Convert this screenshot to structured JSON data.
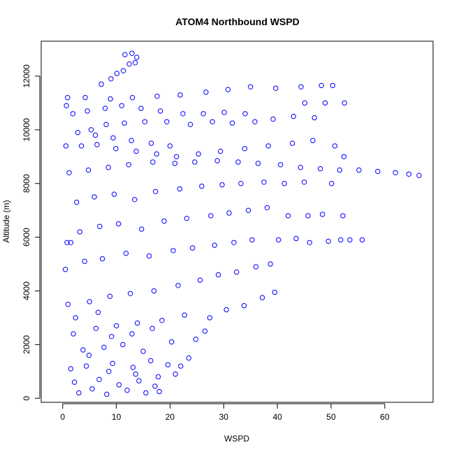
{
  "chart_data": {
    "type": "scatter",
    "title": "ATOM4 Northbound WSPD",
    "xlabel": "WSPD",
    "ylabel": "Altitude (m)",
    "xlim": [
      -4,
      69
    ],
    "ylim": [
      -150,
      13300
    ],
    "xticks": [
      0,
      10,
      20,
      30,
      40,
      50,
      60
    ],
    "yticks": [
      0,
      2000,
      4000,
      6000,
      8000,
      10000,
      12000
    ],
    "grid": false,
    "legend": "none",
    "marker": "open-circle",
    "colors": {
      "series": "#0000ff",
      "axes": "#000000",
      "background": "#ffffff"
    },
    "series": [
      {
        "values": [
          [
            3.0,
            200
          ],
          [
            5.5,
            350
          ],
          [
            8.2,
            150
          ],
          [
            12.0,
            300
          ],
          [
            15.5,
            200
          ],
          [
            18.0,
            250
          ],
          [
            2.2,
            600
          ],
          [
            6.8,
            700
          ],
          [
            10.5,
            500
          ],
          [
            14.2,
            650
          ],
          [
            17.8,
            800
          ],
          [
            21.0,
            900
          ],
          [
            1.5,
            1100
          ],
          [
            4.4,
            1200
          ],
          [
            9.3,
            1300
          ],
          [
            13.1,
            1150
          ],
          [
            16.4,
            1400
          ],
          [
            19.6,
            1250
          ],
          [
            23.5,
            1500
          ],
          [
            3.8,
            1800
          ],
          [
            7.7,
            1900
          ],
          [
            11.2,
            2000
          ],
          [
            15.0,
            1750
          ],
          [
            20.3,
            2100
          ],
          [
            24.8,
            2200
          ],
          [
            26.5,
            2500
          ],
          [
            2.0,
            2400
          ],
          [
            6.2,
            2600
          ],
          [
            10.0,
            2700
          ],
          [
            13.9,
            2800
          ],
          [
            18.5,
            2900
          ],
          [
            22.7,
            3100
          ],
          [
            27.4,
            3000
          ],
          [
            30.5,
            3300
          ],
          [
            33.8,
            3450
          ],
          [
            37.2,
            3750
          ],
          [
            39.5,
            3950
          ],
          [
            1.0,
            3500
          ],
          [
            5.0,
            3600
          ],
          [
            8.8,
            3800
          ],
          [
            12.6,
            3900
          ],
          [
            17.0,
            4000
          ],
          [
            21.5,
            4200
          ],
          [
            25.6,
            4400
          ],
          [
            29.0,
            4600
          ],
          [
            32.4,
            4700
          ],
          [
            36.0,
            4900
          ],
          [
            38.7,
            5000
          ],
          [
            0.5,
            4800
          ],
          [
            4.1,
            5100
          ],
          [
            7.4,
            5200
          ],
          [
            11.8,
            5400
          ],
          [
            16.1,
            5300
          ],
          [
            20.6,
            5500
          ],
          [
            24.2,
            5600
          ],
          [
            28.3,
            5700
          ],
          [
            31.9,
            5800
          ],
          [
            35.3,
            5900
          ],
          [
            40.2,
            5900
          ],
          [
            43.5,
            5950
          ],
          [
            46.0,
            5800
          ],
          [
            49.5,
            5850
          ],
          [
            51.8,
            5900
          ],
          [
            53.5,
            5900
          ],
          [
            55.8,
            5900
          ],
          [
            0.8,
            5800
          ],
          [
            1.5,
            5800
          ],
          [
            3.2,
            6200
          ],
          [
            6.9,
            6400
          ],
          [
            10.4,
            6500
          ],
          [
            14.7,
            6300
          ],
          [
            18.9,
            6600
          ],
          [
            23.1,
            6700
          ],
          [
            27.6,
            6800
          ],
          [
            31.0,
            6900
          ],
          [
            34.6,
            7000
          ],
          [
            38.1,
            7100
          ],
          [
            42.0,
            6800
          ],
          [
            45.7,
            6800
          ],
          [
            48.4,
            6850
          ],
          [
            52.2,
            6800
          ],
          [
            2.6,
            7300
          ],
          [
            5.9,
            7500
          ],
          [
            9.6,
            7600
          ],
          [
            13.4,
            7400
          ],
          [
            17.3,
            7700
          ],
          [
            21.8,
            7800
          ],
          [
            25.9,
            7900
          ],
          [
            29.7,
            7950
          ],
          [
            33.2,
            8000
          ],
          [
            37.5,
            8050
          ],
          [
            41.3,
            8000
          ],
          [
            45.0,
            8050
          ],
          [
            50.1,
            8000
          ],
          [
            1.2,
            8400
          ],
          [
            4.8,
            8500
          ],
          [
            8.5,
            8600
          ],
          [
            12.3,
            8700
          ],
          [
            16.8,
            8800
          ],
          [
            20.9,
            8750
          ],
          [
            24.6,
            8800
          ],
          [
            28.8,
            8850
          ],
          [
            32.7,
            8800
          ],
          [
            36.4,
            8750
          ],
          [
            40.6,
            8700
          ],
          [
            44.3,
            8600
          ],
          [
            48.0,
            8550
          ],
          [
            51.6,
            8500
          ],
          [
            55.2,
            8500
          ],
          [
            58.7,
            8450
          ],
          [
            62.0,
            8400
          ],
          [
            64.5,
            8350
          ],
          [
            66.4,
            8300
          ],
          [
            0.6,
            9400
          ],
          [
            3.5,
            9400
          ],
          [
            6.4,
            9450
          ],
          [
            9.9,
            9300
          ],
          [
            13.7,
            9200
          ],
          [
            17.5,
            9100
          ],
          [
            21.2,
            9000
          ],
          [
            25.3,
            9100
          ],
          [
            29.4,
            9200
          ],
          [
            33.9,
            9300
          ],
          [
            38.3,
            9400
          ],
          [
            42.8,
            9500
          ],
          [
            46.6,
            9600
          ],
          [
            50.7,
            9400
          ],
          [
            52.4,
            9000
          ],
          [
            2.8,
            9900
          ],
          [
            5.3,
            10000
          ],
          [
            8.1,
            10200
          ],
          [
            11.5,
            10250
          ],
          [
            15.3,
            10300
          ],
          [
            19.4,
            10300
          ],
          [
            23.8,
            10200
          ],
          [
            27.9,
            10300
          ],
          [
            31.6,
            10250
          ],
          [
            35.8,
            10300
          ],
          [
            39.2,
            10400
          ],
          [
            43.0,
            10500
          ],
          [
            46.9,
            10450
          ],
          [
            1.9,
            10600
          ],
          [
            4.6,
            10700
          ],
          [
            7.9,
            10800
          ],
          [
            11.0,
            10900
          ],
          [
            14.6,
            10800
          ],
          [
            18.2,
            10700
          ],
          [
            22.4,
            10600
          ],
          [
            26.2,
            10600
          ],
          [
            30.1,
            10650
          ],
          [
            34.0,
            10600
          ],
          [
            45.1,
            11000
          ],
          [
            48.9,
            11000
          ],
          [
            52.5,
            11000
          ],
          [
            0.7,
            10900
          ],
          [
            0.9,
            11200
          ],
          [
            4.2,
            11200
          ],
          [
            8.9,
            11150
          ],
          [
            13.0,
            11200
          ],
          [
            17.6,
            11250
          ],
          [
            21.9,
            11300
          ],
          [
            26.7,
            11400
          ],
          [
            30.8,
            11500
          ],
          [
            35.0,
            11600
          ],
          [
            39.7,
            11550
          ],
          [
            44.4,
            11600
          ],
          [
            48.2,
            11650
          ],
          [
            50.3,
            11650
          ],
          [
            7.2,
            11700
          ],
          [
            9.0,
            11900
          ],
          [
            10.1,
            12100
          ],
          [
            11.3,
            12200
          ],
          [
            12.4,
            12450
          ],
          [
            13.5,
            12500
          ],
          [
            11.6,
            12800
          ],
          [
            12.9,
            12850
          ],
          [
            13.8,
            12700
          ],
          [
            6.1,
            9800
          ],
          [
            9.4,
            9700
          ],
          [
            12.8,
            9600
          ],
          [
            16.5,
            9500
          ],
          [
            20.0,
            9400
          ],
          [
            2.4,
            3000
          ],
          [
            6.6,
            3200
          ],
          [
            9.1,
            2300
          ],
          [
            12.9,
            2400
          ],
          [
            16.7,
            2600
          ],
          [
            4.9,
            1600
          ],
          [
            8.6,
            1000
          ],
          [
            13.6,
            900
          ],
          [
            17.2,
            450
          ],
          [
            22.0,
            1200
          ]
        ]
      }
    ]
  }
}
